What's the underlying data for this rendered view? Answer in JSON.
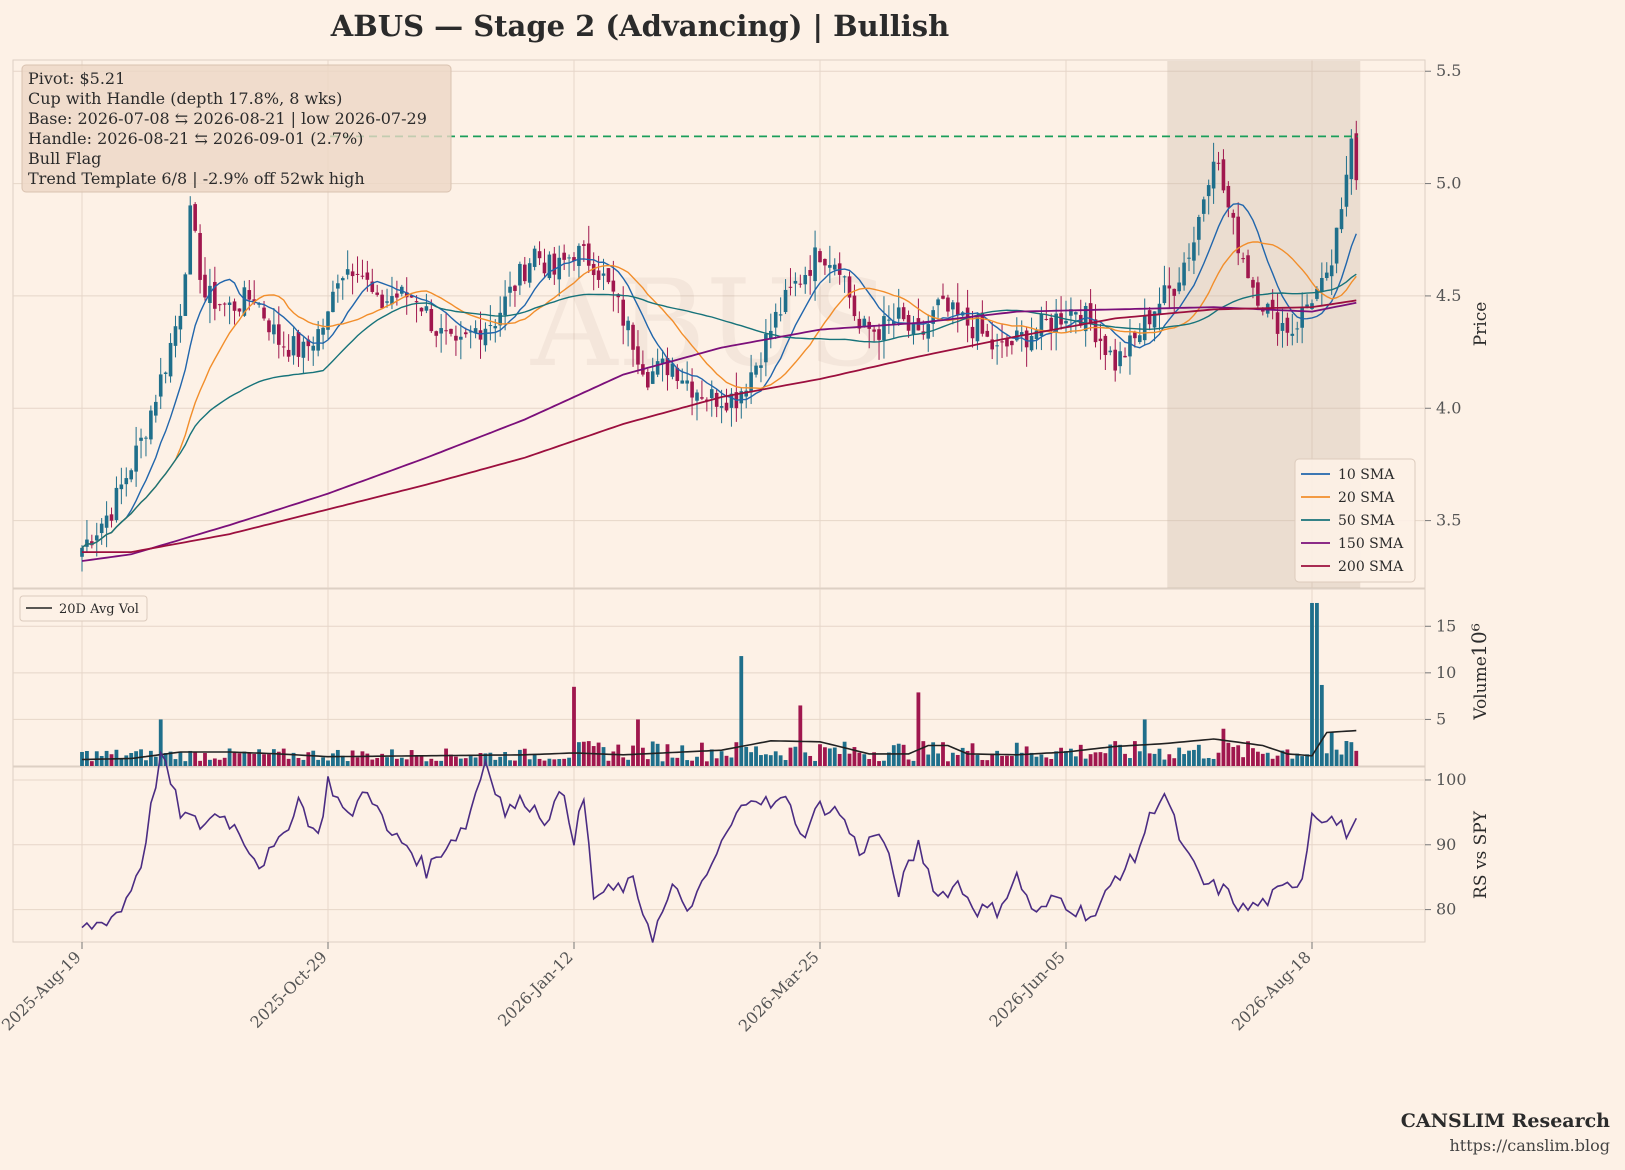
{
  "title": "ABUS  —  Stage 2 (Advancing)  |  Bullish",
  "watermark": "ABUS",
  "credit": {
    "name": "CANSLIM Research",
    "url": "https://canslim.blog"
  },
  "annotation": [
    "Pivot: $5.21",
    "Cup with Handle  (depth 17.8%, 8 wks)",
    "Base: 2026-07-08 ⇆ 2026-08-21  |  low 2026-07-29",
    "Handle: 2026-08-21 ⇆ 2026-09-01 (2.7%)",
    "Bull Flag",
    "Trend Template 6/8  |  -2.9% off 52wk high"
  ],
  "colors": {
    "background": "#fdf1e6",
    "grid": "#e6d6c9",
    "up": "#1f6f8b",
    "down": "#a0174e",
    "sma10": "#2166ac",
    "sma20": "#f28e2b",
    "sma50": "#17737a",
    "sma150": "#7b0f7a",
    "sma200": "#9c0f3e",
    "pivot": "#1a9e5a",
    "rs": "#4b2c83",
    "avgvol": "#222222",
    "shade": "#c8b6a6"
  },
  "chart_data": [
    {
      "type": "candlestick",
      "panel": "price",
      "ylabel": "Price",
      "yticks": [
        3.5,
        4.0,
        4.5,
        5.0,
        5.5
      ],
      "ylim": [
        3.2,
        5.55
      ],
      "x_tick_labels": [
        "2025-Aug-19",
        "2025-Oct-29",
        "2026-Jan-12",
        "2026-Mar-25",
        "2026-Jun-05",
        "2026-Aug-18"
      ],
      "x_tick_index": [
        0,
        50,
        100,
        150,
        200,
        250
      ],
      "n_bars": 260,
      "pivot": 5.21,
      "shaded_bar_range": [
        221,
        259
      ],
      "close_anchors": [
        [
          0,
          3.38
        ],
        [
          6,
          3.55
        ],
        [
          12,
          3.85
        ],
        [
          17,
          4.2
        ],
        [
          20,
          4.45
        ],
        [
          22,
          4.85
        ],
        [
          25,
          4.5
        ],
        [
          30,
          4.45
        ],
        [
          35,
          4.5
        ],
        [
          40,
          4.3
        ],
        [
          45,
          4.25
        ],
        [
          50,
          4.4
        ],
        [
          52,
          4.6
        ],
        [
          56,
          4.65
        ],
        [
          60,
          4.45
        ],
        [
          63,
          4.5
        ],
        [
          68,
          4.5
        ],
        [
          72,
          4.35
        ],
        [
          76,
          4.25
        ],
        [
          80,
          4.35
        ],
        [
          84,
          4.4
        ],
        [
          88,
          4.55
        ],
        [
          92,
          4.7
        ],
        [
          96,
          4.6
        ],
        [
          100,
          4.7
        ],
        [
          104,
          4.65
        ],
        [
          108,
          4.5
        ],
        [
          112,
          4.3
        ],
        [
          115,
          4.15
        ],
        [
          120,
          4.2
        ],
        [
          124,
          4.1
        ],
        [
          128,
          4.05
        ],
        [
          133,
          4.05
        ],
        [
          137,
          4.2
        ],
        [
          141,
          4.4
        ],
        [
          145,
          4.55
        ],
        [
          150,
          4.7
        ],
        [
          154,
          4.65
        ],
        [
          158,
          4.35
        ],
        [
          162,
          4.35
        ],
        [
          166,
          4.4
        ],
        [
          170,
          4.3
        ],
        [
          174,
          4.45
        ],
        [
          178,
          4.4
        ],
        [
          182,
          4.35
        ],
        [
          186,
          4.25
        ],
        [
          190,
          4.3
        ],
        [
          194,
          4.35
        ],
        [
          198,
          4.4
        ],
        [
          202,
          4.45
        ],
        [
          206,
          4.35
        ],
        [
          210,
          4.2
        ],
        [
          214,
          4.3
        ],
        [
          218,
          4.45
        ],
        [
          222,
          4.55
        ],
        [
          226,
          4.75
        ],
        [
          230,
          5.15
        ],
        [
          234,
          4.8
        ],
        [
          238,
          4.55
        ],
        [
          242,
          4.4
        ],
        [
          246,
          4.35
        ],
        [
          250,
          4.5
        ],
        [
          253,
          4.55
        ],
        [
          256,
          4.85
        ],
        [
          258,
          5.25
        ],
        [
          259,
          5.05
        ]
      ],
      "overlays": [
        {
          "name": "10 SMA",
          "color_key": "sma10",
          "window": 10
        },
        {
          "name": "20 SMA",
          "color_key": "sma20",
          "window": 20
        },
        {
          "name": "50 SMA",
          "color_key": "sma50",
          "window": 50
        },
        {
          "name": "150 SMA",
          "color_key": "sma150",
          "anchors": [
            [
              0,
              3.32
            ],
            [
              10,
              3.35
            ],
            [
              30,
              3.48
            ],
            [
              50,
              3.62
            ],
            [
              70,
              3.78
            ],
            [
              90,
              3.95
            ],
            [
              110,
              4.15
            ],
            [
              130,
              4.27
            ],
            [
              150,
              4.35
            ],
            [
              170,
              4.38
            ],
            [
              190,
              4.43
            ],
            [
              210,
              4.44
            ],
            [
              230,
              4.45
            ],
            [
              250,
              4.43
            ],
            [
              259,
              4.47
            ]
          ]
        },
        {
          "name": "200 SMA",
          "color_key": "sma200",
          "anchors": [
            [
              0,
              3.36
            ],
            [
              10,
              3.36
            ],
            [
              30,
              3.44
            ],
            [
              50,
              3.55
            ],
            [
              70,
              3.66
            ],
            [
              90,
              3.78
            ],
            [
              110,
              3.93
            ],
            [
              130,
              4.05
            ],
            [
              150,
              4.13
            ],
            [
              170,
              4.23
            ],
            [
              190,
              4.32
            ],
            [
              210,
              4.4
            ],
            [
              230,
              4.44
            ],
            [
              250,
              4.45
            ],
            [
              259,
              4.48
            ]
          ]
        }
      ]
    },
    {
      "type": "bar",
      "panel": "volume",
      "ylabel": "Volume",
      "yscale_label": "10⁶",
      "yticks": [
        5,
        10,
        15
      ],
      "ylim": [
        0,
        19
      ],
      "series_names": [
        "20D Avg Vol"
      ],
      "spikes": [
        [
          16,
          5
        ],
        [
          100,
          8.5
        ],
        [
          113,
          5
        ],
        [
          134,
          11.8
        ],
        [
          146,
          6.5
        ],
        [
          170,
          7.9
        ],
        [
          216,
          5
        ],
        [
          232,
          4
        ],
        [
          250,
          17.5
        ],
        [
          251,
          17.5
        ],
        [
          252,
          8.7
        ],
        [
          254,
          3.7
        ]
      ],
      "avg_anchors": [
        [
          0,
          0.7
        ],
        [
          10,
          0.8
        ],
        [
          20,
          1.5
        ],
        [
          30,
          1.5
        ],
        [
          40,
          1.3
        ],
        [
          50,
          1.0
        ],
        [
          70,
          1.1
        ],
        [
          90,
          1.2
        ],
        [
          100,
          1.4
        ],
        [
          110,
          1.2
        ],
        [
          130,
          1.7
        ],
        [
          140,
          2.7
        ],
        [
          150,
          2.6
        ],
        [
          160,
          1.3
        ],
        [
          168,
          1.3
        ],
        [
          172,
          2.2
        ],
        [
          176,
          2.2
        ],
        [
          180,
          1.3
        ],
        [
          190,
          1.2
        ],
        [
          200,
          1.5
        ],
        [
          210,
          2.1
        ],
        [
          220,
          2.4
        ],
        [
          230,
          2.9
        ],
        [
          240,
          2.2
        ],
        [
          245,
          1.3
        ],
        [
          250,
          1.1
        ],
        [
          253,
          3.6
        ],
        [
          259,
          3.8
        ]
      ]
    },
    {
      "type": "line",
      "panel": "rs",
      "ylabel": "RS vs SPY",
      "yticks": [
        80,
        90,
        100
      ],
      "ylim": [
        75,
        102
      ],
      "anchors": [
        [
          0,
          77
        ],
        [
          4,
          78
        ],
        [
          8,
          80
        ],
        [
          12,
          87
        ],
        [
          16,
          104
        ],
        [
          20,
          95
        ],
        [
          24,
          93
        ],
        [
          28,
          95
        ],
        [
          32,
          92
        ],
        [
          36,
          87
        ],
        [
          40,
          90
        ],
        [
          44,
          97
        ],
        [
          48,
          91
        ],
        [
          50,
          100
        ],
        [
          54,
          94
        ],
        [
          58,
          99
        ],
        [
          62,
          92
        ],
        [
          66,
          90
        ],
        [
          70,
          86
        ],
        [
          74,
          90
        ],
        [
          78,
          93
        ],
        [
          82,
          103
        ],
        [
          86,
          95
        ],
        [
          90,
          97
        ],
        [
          94,
          94
        ],
        [
          98,
          98
        ],
        [
          100,
          91
        ],
        [
          102,
          97
        ],
        [
          104,
          82
        ],
        [
          108,
          83
        ],
        [
          112,
          84
        ],
        [
          116,
          76
        ],
        [
          120,
          83
        ],
        [
          124,
          80
        ],
        [
          128,
          87
        ],
        [
          132,
          93
        ],
        [
          136,
          98
        ],
        [
          140,
          96
        ],
        [
          144,
          97
        ],
        [
          146,
          91
        ],
        [
          150,
          96
        ],
        [
          154,
          95
        ],
        [
          158,
          89
        ],
        [
          162,
          92
        ],
        [
          166,
          83
        ],
        [
          170,
          90
        ],
        [
          174,
          82
        ],
        [
          178,
          84
        ],
        [
          182,
          80
        ],
        [
          186,
          80
        ],
        [
          190,
          85
        ],
        [
          194,
          79
        ],
        [
          198,
          82
        ],
        [
          202,
          80
        ],
        [
          206,
          79
        ],
        [
          210,
          85
        ],
        [
          214,
          88
        ],
        [
          218,
          96
        ],
        [
          220,
          98
        ],
        [
          224,
          89
        ],
        [
          228,
          84
        ],
        [
          232,
          83
        ],
        [
          236,
          80
        ],
        [
          240,
          81
        ],
        [
          244,
          83
        ],
        [
          248,
          85
        ],
        [
          250,
          95
        ],
        [
          254,
          94
        ],
        [
          257,
          92
        ],
        [
          259,
          93
        ]
      ]
    }
  ],
  "legend_entries": [
    "10 SMA",
    "20 SMA",
    "50 SMA",
    "150 SMA",
    "200 SMA"
  ]
}
